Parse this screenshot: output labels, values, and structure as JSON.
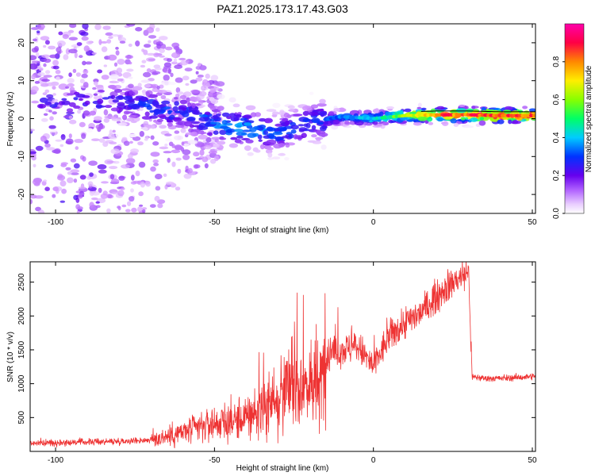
{
  "title": "PAZ1.2025.173.17.43.G03",
  "colors": {
    "snr_line": "#ee3333",
    "axis": "#000000",
    "ridge": "#000000"
  },
  "chart_data": [
    {
      "type": "heatmap",
      "xlabel": "Height of straight line (km)",
      "ylabel": "Frequency (Hz)",
      "xlim": [
        -108,
        51
      ],
      "ylim": [
        -25,
        25
      ],
      "x_ticks": [
        -100,
        -50,
        0,
        50
      ],
      "y_ticks": [
        -20,
        -10,
        0,
        10,
        20
      ],
      "colorbar": {
        "label": "Normalized spectral amplitude",
        "range": [
          0,
          1
        ],
        "ticks": [
          0.0,
          0.2,
          0.4,
          0.6,
          0.8
        ],
        "colormap": [
          "#ffffff",
          "#cc88ff",
          "#6600ee",
          "#0033ff",
          "#00ccff",
          "#00ff66",
          "#aaff00",
          "#ffee00",
          "#ff8800",
          "#ff0044",
          "#ff00aa"
        ]
      },
      "ridge": {
        "x": [
          -80,
          -70,
          -60,
          -50,
          -40,
          -30,
          -20,
          -10,
          0,
          10,
          20,
          30,
          40,
          51
        ],
        "y": [
          4.5,
          3,
          1.5,
          -1.5,
          -2.5,
          -4,
          -1,
          0.5,
          0,
          0.8,
          1,
          1,
          0.8,
          0.8
        ]
      },
      "ridge_amplitude": [
        0.25,
        0.3,
        0.3,
        0.35,
        0.4,
        0.3,
        0.3,
        0.35,
        0.45,
        0.6,
        0.85,
        0.9,
        0.9,
        0.85
      ]
    },
    {
      "type": "line",
      "xlabel": "Height of straight line (km)",
      "ylabel": "SNR (10 * v/v)",
      "xlim": [
        -108,
        51
      ],
      "ylim": [
        0,
        2800
      ],
      "x_ticks": [
        -100,
        -50,
        0,
        50
      ],
      "y_ticks": [
        500,
        1000,
        1500,
        2000,
        2500
      ],
      "series": [
        {
          "x": [
            -108,
            -100,
            -90,
            -80,
            -70,
            -60,
            -55,
            -50,
            -45,
            -40,
            -35,
            -32,
            -30,
            -25,
            -20,
            -17,
            -15,
            -10,
            -5,
            0,
            5,
            10,
            15,
            20,
            25,
            30,
            31,
            35,
            40,
            45,
            51
          ],
          "y": [
            120,
            130,
            140,
            150,
            170,
            280,
            350,
            420,
            440,
            500,
            650,
            800,
            900,
            950,
            1000,
            900,
            1400,
            1500,
            1550,
            1250,
            1700,
            1900,
            2050,
            2300,
            2500,
            2650,
            1100,
            1080,
            1080,
            1090,
            1110
          ]
        }
      ]
    }
  ]
}
